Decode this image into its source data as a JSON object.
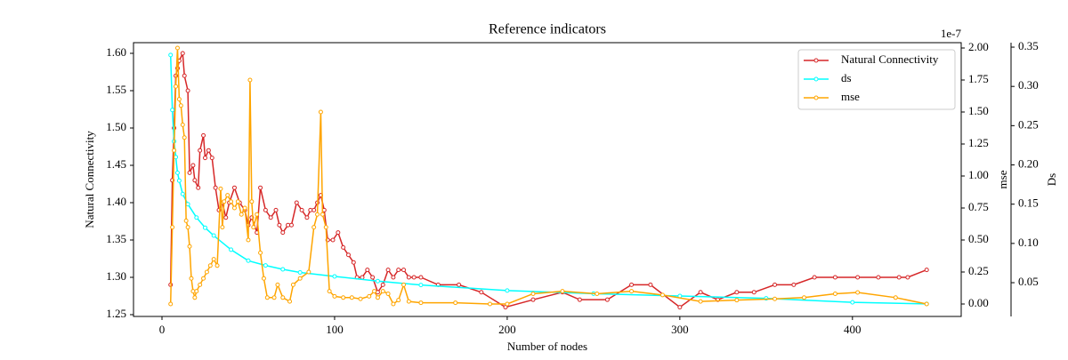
{
  "chart_data": {
    "type": "line",
    "title": "Reference indicators",
    "x_label": "Number of nodes",
    "y_label": "Natural Connectivity",
    "y2_label": "mse",
    "y3_label": "Ds",
    "y2_offset": "1e-7",
    "xlim": [
      -16.5,
      463
    ],
    "xticks": [
      0,
      100,
      200,
      300,
      400
    ],
    "ylim": [
      1.2476,
      1.6143
    ],
    "yticks": [
      {
        "value": 1.25,
        "label": "1.25"
      },
      {
        "value": 1.3,
        "label": "1.30"
      },
      {
        "value": 1.35,
        "label": "1.35"
      },
      {
        "value": 1.4,
        "label": "1.40"
      },
      {
        "value": 1.45,
        "label": "1.45"
      },
      {
        "value": 1.5,
        "label": "1.50"
      },
      {
        "value": 1.55,
        "label": "1.55"
      },
      {
        "value": 1.6,
        "label": "1.60"
      }
    ],
    "y2lim": [
      -0.0972,
      2.0417
    ],
    "y2ticks": [
      {
        "value": 0,
        "label": "0.00"
      },
      {
        "value": 0.25,
        "label": "0.25"
      },
      {
        "value": 0.5,
        "label": "0.50"
      },
      {
        "value": 0.75,
        "label": "0.75"
      },
      {
        "value": 1,
        "label": "1.00"
      },
      {
        "value": 1.25,
        "label": "1.25"
      },
      {
        "value": 1.5,
        "label": "1.50"
      },
      {
        "value": 1.75,
        "label": "1.75"
      },
      {
        "value": 2,
        "label": "2.00"
      }
    ],
    "y3lim": [
      0.007,
      0.3557
    ],
    "y3ticks": [
      {
        "value": 0.05,
        "label": "0.05"
      },
      {
        "value": 0.1,
        "label": "0.10"
      },
      {
        "value": 0.15,
        "label": "0.15"
      },
      {
        "value": 0.2,
        "label": "0.20"
      },
      {
        "value": 0.25,
        "label": "0.25"
      },
      {
        "value": 0.3,
        "label": "0.30"
      },
      {
        "value": 0.35,
        "label": "0.35"
      }
    ],
    "legend": "upper right",
    "series": [
      {
        "name": "Natural Connectivity",
        "color": "#d62728",
        "axis": "y",
        "x": [
          5,
          6,
          7,
          8,
          9,
          10,
          12,
          13,
          15,
          16,
          18,
          19,
          21,
          22,
          24,
          25,
          27,
          29,
          31,
          33,
          35,
          37,
          39,
          42,
          45,
          48,
          50,
          52,
          55,
          57,
          60,
          63,
          66,
          68,
          70,
          73,
          75,
          78,
          81,
          84,
          86,
          88,
          90,
          92,
          94,
          96,
          99,
          102,
          105,
          108,
          111,
          113,
          116,
          119,
          122,
          125,
          128,
          131,
          134,
          137,
          140,
          143,
          146,
          150,
          160,
          172,
          185,
          199,
          215,
          232,
          242,
          258,
          272,
          283,
          300,
          312,
          322,
          333,
          343,
          355,
          366,
          378,
          390,
          403,
          415,
          427,
          432,
          443
        ],
        "values": [
          1.29,
          1.43,
          1.5,
          1.57,
          1.58,
          1.59,
          1.6,
          1.57,
          1.55,
          1.44,
          1.45,
          1.43,
          1.42,
          1.47,
          1.49,
          1.46,
          1.47,
          1.46,
          1.42,
          1.39,
          1.4,
          1.38,
          1.4,
          1.42,
          1.4,
          1.39,
          1.37,
          1.38,
          1.36,
          1.42,
          1.39,
          1.38,
          1.39,
          1.37,
          1.36,
          1.37,
          1.37,
          1.4,
          1.39,
          1.38,
          1.39,
          1.39,
          1.4,
          1.41,
          1.39,
          1.35,
          1.35,
          1.36,
          1.34,
          1.33,
          1.32,
          1.3,
          1.3,
          1.31,
          1.3,
          1.28,
          1.29,
          1.31,
          1.3,
          1.31,
          1.31,
          1.3,
          1.3,
          1.3,
          1.29,
          1.29,
          1.28,
          1.26,
          1.27,
          1.28,
          1.27,
          1.27,
          1.29,
          1.29,
          1.26,
          1.28,
          1.27,
          1.28,
          1.28,
          1.29,
          1.29,
          1.3,
          1.3,
          1.3,
          1.3,
          1.3,
          1.3,
          1.31
        ]
      },
      {
        "name": "ds",
        "color": "#00ffff",
        "axis": "y3",
        "x": [
          5,
          6,
          7,
          8,
          9,
          10,
          12,
          15,
          20,
          25,
          30,
          40,
          50,
          60,
          70,
          80,
          100,
          125,
          150,
          200,
          250,
          300,
          350,
          400,
          443
        ],
        "values": [
          0.34,
          0.27,
          0.23,
          0.21,
          0.19,
          0.18,
          0.163,
          0.15,
          0.133,
          0.12,
          0.11,
          0.092,
          0.078,
          0.072,
          0.067,
          0.063,
          0.058,
          0.052,
          0.047,
          0.04,
          0.036,
          0.033,
          0.03,
          0.025,
          0.023
        ]
      },
      {
        "name": "mse",
        "color": "#ffa500",
        "axis": "y2",
        "x": [
          5,
          6,
          7,
          8,
          9,
          10,
          11,
          12,
          13,
          14,
          15,
          16,
          17,
          18,
          19,
          20,
          22,
          24,
          26,
          28,
          30,
          32,
          34,
          35,
          36,
          38,
          40,
          42,
          44,
          46,
          48,
          50,
          51,
          52,
          53,
          55,
          57,
          59,
          61,
          65,
          67,
          70,
          74,
          76,
          80,
          85,
          88,
          90,
          92,
          93,
          95,
          97,
          100,
          105,
          110,
          115,
          120,
          123,
          125,
          128,
          131,
          134,
          137,
          140,
          143,
          150,
          170,
          190,
          200,
          215,
          232,
          252,
          272,
          290,
          312,
          333,
          355,
          372,
          390,
          403,
          425,
          443
        ],
        "values": [
          0,
          0.6,
          1.2,
          1.7,
          2,
          1.6,
          1.55,
          1.4,
          1.3,
          0.65,
          0.6,
          0.45,
          0.2,
          0.1,
          0.05,
          0.1,
          0.15,
          0.2,
          0.25,
          0.3,
          0.35,
          0.3,
          0.9,
          0.6,
          0.8,
          0.85,
          0.8,
          0.75,
          0.8,
          0.7,
          0.75,
          0.5,
          1.75,
          0.8,
          0.6,
          0.7,
          0.4,
          0.2,
          0.05,
          0.05,
          0.15,
          0.05,
          0.02,
          0.15,
          0.2,
          0.25,
          0.6,
          0.7,
          1.5,
          0.7,
          0.6,
          0.1,
          0.06,
          0.05,
          0.05,
          0.04,
          0.06,
          0.1,
          0.05,
          0.1,
          0.08,
          0,
          0.03,
          0.15,
          0.02,
          0.01,
          0.01,
          0,
          0,
          0.08,
          0.1,
          0.08,
          0.1,
          0.07,
          0.02,
          0.03,
          0.04,
          0.05,
          0.08,
          0.09,
          0.05,
          0
        ]
      }
    ]
  }
}
